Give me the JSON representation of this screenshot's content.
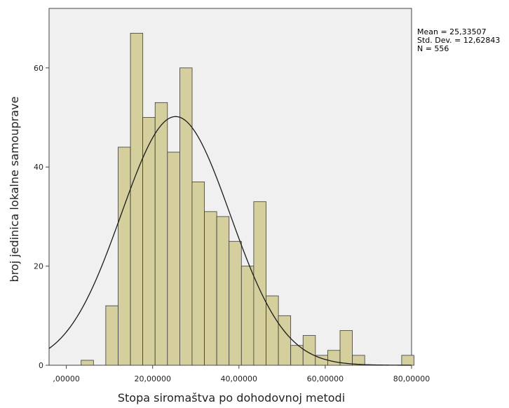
{
  "chart_data": {
    "type": "bar",
    "subtype": "histogram",
    "xlabel": "Stopa siromaštva po dohodovnoj metodi",
    "ylabel": "broj jedinica lokalne samouprave",
    "xlim": [
      -4,
      80
    ],
    "ylim": [
      0,
      72
    ],
    "x_ticks": [
      0,
      20,
      40,
      60,
      80
    ],
    "x_tick_labels": [
      ",00000",
      "20,00000",
      "40,00000",
      "60,00000",
      "80,00000"
    ],
    "y_ticks": [
      0,
      20,
      40,
      60
    ],
    "y_tick_labels": [
      "0",
      "20",
      "40",
      "60"
    ],
    "bin_width": 2.857,
    "bins": [
      {
        "x0": 3.43,
        "count": 1
      },
      {
        "x0": 6.29,
        "count": 0
      },
      {
        "x0": 9.14,
        "count": 12
      },
      {
        "x0": 12.0,
        "count": 44
      },
      {
        "x0": 14.86,
        "count": 67
      },
      {
        "x0": 17.71,
        "count": 50
      },
      {
        "x0": 20.57,
        "count": 53
      },
      {
        "x0": 23.43,
        "count": 43
      },
      {
        "x0": 26.29,
        "count": 60
      },
      {
        "x0": 29.14,
        "count": 37
      },
      {
        "x0": 32.0,
        "count": 31
      },
      {
        "x0": 34.86,
        "count": 30
      },
      {
        "x0": 37.71,
        "count": 25
      },
      {
        "x0": 40.57,
        "count": 20
      },
      {
        "x0": 43.43,
        "count": 33
      },
      {
        "x0": 46.29,
        "count": 14
      },
      {
        "x0": 49.14,
        "count": 10
      },
      {
        "x0": 52.0,
        "count": 4
      },
      {
        "x0": 54.86,
        "count": 6
      },
      {
        "x0": 57.71,
        "count": 2
      },
      {
        "x0": 60.57,
        "count": 3
      },
      {
        "x0": 63.43,
        "count": 7
      },
      {
        "x0": 66.29,
        "count": 2
      },
      {
        "x0": 69.14,
        "count": 0
      },
      {
        "x0": 72.0,
        "count": 0
      },
      {
        "x0": 74.86,
        "count": 0
      },
      {
        "x0": 77.71,
        "count": 2
      }
    ],
    "normal_curve": {
      "mean": 25.33507,
      "std": 12.62843,
      "n": 556
    },
    "stats_lines": [
      "Mean = 25,33507",
      "Std. Dev. = 12,62843",
      "N = 556"
    ],
    "grid": false,
    "colors": {
      "bar_fill": "#d4cf9c",
      "bar_stroke": "#3b3b3b",
      "plot_bg": "#f0f0f0",
      "curve": "#1a1a1a"
    }
  }
}
